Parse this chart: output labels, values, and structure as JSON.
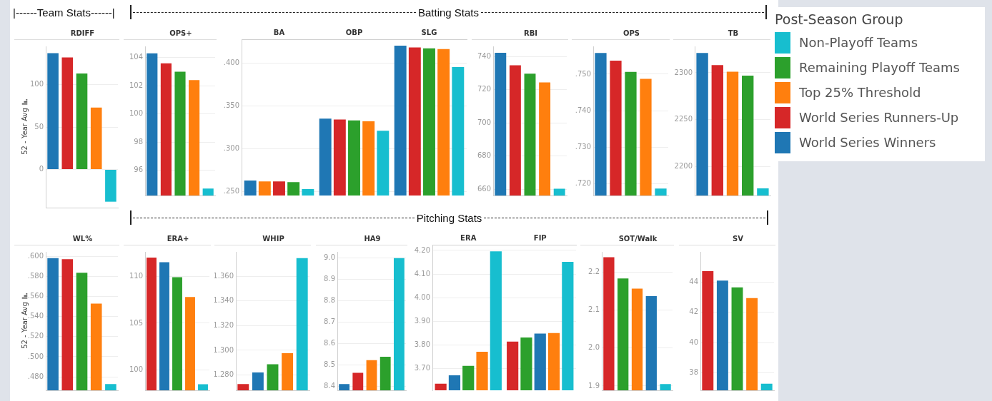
{
  "chart_data": [
    {
      "type": "bar",
      "title": "RDIFF",
      "ylabel": "52 - Year Avg",
      "annotations": [
        "|------Team Stats------|"
      ],
      "categories": [
        null,
        null,
        null,
        null,
        null
      ],
      "values": [
        137,
        132,
        113,
        73,
        -38
      ],
      "colors": [
        "#1f77b4",
        "#d62728",
        "#2ca02c",
        "#ff7f0e",
        "#17becf"
      ],
      "ylim": [
        -45,
        145
      ],
      "yticks": [
        0,
        50,
        100
      ],
      "grid": "y"
    },
    {
      "type": "bar",
      "title": "OPS+",
      "annotations": [
        "Batting Stats"
      ],
      "categories": [
        null,
        null,
        null,
        null,
        null
      ],
      "values": [
        104.3,
        103.6,
        103.0,
        102.4,
        94.7
      ],
      "colors": [
        "#1f77b4",
        "#d62728",
        "#2ca02c",
        "#ff7f0e",
        "#17becf"
      ],
      "ylim": [
        94.2,
        104.8
      ],
      "yticks": [
        96,
        98,
        100,
        102,
        104
      ],
      "grid": "y"
    },
    {
      "type": "bar",
      "categories": [
        "BA",
        "OBP",
        "SLG"
      ],
      "series": [
        {
          "values": [
            0.263,
            0.335,
            0.42
          ],
          "colors": [
            "#1f77b4",
            "#1f77b4",
            "#1f77b4"
          ]
        },
        {
          "values": [
            0.262,
            0.334,
            0.418
          ],
          "colors": [
            "#ff7f0e",
            "#d62728",
            "#d62728"
          ]
        },
        {
          "values": [
            0.262,
            0.333,
            0.417
          ],
          "colors": [
            "#d62728",
            "#2ca02c",
            "#2ca02c"
          ]
        },
        {
          "values": [
            0.261,
            0.332,
            0.416
          ],
          "colors": [
            "#2ca02c",
            "#ff7f0e",
            "#ff7f0e"
          ]
        },
        {
          "values": [
            0.253,
            0.321,
            0.395
          ],
          "colors": [
            "#17becf",
            "#17becf",
            "#17becf"
          ]
        }
      ],
      "ylim": [
        0.2455,
        0.4275
      ],
      "yticks": [
        {
          "value": 0.25,
          "label": ".250"
        },
        {
          "value": 0.3,
          "label": ".300"
        },
        {
          "value": 0.35,
          "label": ".350"
        },
        {
          "value": 0.4,
          "label": ".400"
        }
      ],
      "grid": "y"
    },
    {
      "type": "bar",
      "title": "RBI",
      "categories": [
        null,
        null,
        null,
        null,
        null
      ],
      "values": [
        742.3,
        734.8,
        729.7,
        724.4,
        660.3
      ],
      "colors": [
        "#1f77b4",
        "#d62728",
        "#2ca02c",
        "#ff7f0e",
        "#17becf"
      ],
      "ylim": [
        656.2,
        746.2
      ],
      "yticks": [
        660,
        680,
        700,
        720,
        740
      ],
      "grid": "y"
    },
    {
      "type": "bar",
      "title": "OPS",
      "categories": [
        null,
        null,
        null,
        null,
        null
      ],
      "values": [
        0.7558,
        0.7537,
        0.7506,
        0.7487,
        0.7187
      ],
      "colors": [
        "#1f77b4",
        "#d62728",
        "#2ca02c",
        "#ff7f0e",
        "#17becf"
      ],
      "ylim": [
        0.7168,
        0.7576
      ],
      "yticks": [
        {
          "value": 0.72,
          "label": ".720"
        },
        {
          "value": 0.73,
          "label": ".730"
        },
        {
          "value": 0.74,
          "label": ".740"
        },
        {
          "value": 0.75,
          "label": ".750"
        }
      ],
      "grid": "y"
    },
    {
      "type": "bar",
      "title": "TB",
      "categories": [
        null,
        null,
        null,
        null,
        null
      ],
      "values": [
        2321,
        2308,
        2301,
        2297,
        2177
      ],
      "colors": [
        "#1f77b4",
        "#d62728",
        "#ff7f0e",
        "#2ca02c",
        "#17becf"
      ],
      "ylim": [
        2169.5,
        2328
      ],
      "yticks": [
        2200,
        2250,
        2300
      ],
      "grid": "y"
    },
    {
      "type": "bar",
      "title": "WL%",
      "ylabel": "52 - Year Avg",
      "annotations": [
        "Pitching Stats"
      ],
      "categories": [
        null,
        null,
        null,
        null,
        null
      ],
      "values": [
        0.5985,
        0.5974,
        0.5839,
        0.5531,
        0.4727
      ],
      "colors": [
        "#1f77b4",
        "#d62728",
        "#2ca02c",
        "#ff7f0e",
        "#17becf"
      ],
      "ylim": [
        0.4665,
        0.6047
      ],
      "yticks": [
        {
          "value": 0.48,
          "label": ".480"
        },
        {
          "value": 0.5,
          "label": ".500"
        },
        {
          "value": 0.52,
          "label": ".520"
        },
        {
          "value": 0.54,
          "label": ".540"
        },
        {
          "value": 0.56,
          "label": ".560"
        },
        {
          "value": 0.58,
          "label": ".580"
        },
        {
          "value": 0.6,
          "label": ".600"
        }
      ],
      "grid": "y"
    },
    {
      "type": "bar",
      "title": "ERA+",
      "categories": [
        null,
        null,
        null,
        null,
        null
      ],
      "values": [
        112.0,
        111.5,
        109.9,
        107.8,
        98.5
      ],
      "colors": [
        "#d62728",
        "#1f77b4",
        "#2ca02c",
        "#ff7f0e",
        "#17becf"
      ],
      "ylim": [
        97.85,
        112.6
      ],
      "yticks": [
        100,
        105,
        110
      ],
      "grid": "y"
    },
    {
      "type": "bar",
      "title": "WHIP",
      "categories": [
        null,
        null,
        null,
        null,
        null
      ],
      "values": [
        1.2727,
        1.2821,
        1.2887,
        1.2976,
        1.3747
      ],
      "colors": [
        "#d62728",
        "#1f77b4",
        "#2ca02c",
        "#ff7f0e",
        "#17becf"
      ],
      "ylim": [
        1.2676,
        1.3797
      ],
      "yticks": [
        {
          "value": 1.28,
          "label": "1.280"
        },
        {
          "value": 1.3,
          "label": "1.300"
        },
        {
          "value": 1.32,
          "label": "1.320"
        },
        {
          "value": 1.34,
          "label": "1.340"
        },
        {
          "value": 1.36,
          "label": "1.360"
        }
      ],
      "grid": "y"
    },
    {
      "type": "bar",
      "title": "HA9",
      "categories": [
        null,
        null,
        null,
        null,
        null
      ],
      "values": [
        8.411,
        8.464,
        8.523,
        8.539,
        9.0
      ],
      "colors": [
        "#1f77b4",
        "#d62728",
        "#ff7f0e",
        "#2ca02c",
        "#17becf"
      ],
      "ylim": [
        8.382,
        9.029
      ],
      "yticks": [
        8.4,
        8.5,
        8.6,
        8.7,
        8.8,
        8.9,
        {
          "value": 9.0,
          "label": "9.0"
        }
      ],
      "grid": "y"
    },
    {
      "type": "bar",
      "categories": [
        "ERA",
        "FIP"
      ],
      "series": [
        {
          "values": [
            3.637,
            3.815
          ],
          "colors": [
            "#d62728",
            "#d62728"
          ]
        },
        {
          "values": [
            3.672,
            3.832
          ],
          "colors": [
            "#1f77b4",
            "#2ca02c"
          ]
        },
        {
          "values": [
            3.712,
            3.849
          ],
          "colors": [
            "#2ca02c",
            "#1f77b4"
          ]
        },
        {
          "values": [
            3.772,
            3.851
          ],
          "colors": [
            "#ff7f0e",
            "#ff7f0e"
          ]
        },
        {
          "values": [
            4.196,
            4.152
          ],
          "colors": [
            "#17becf",
            "#17becf"
          ]
        }
      ],
      "ylim": [
        3.609,
        4.224
      ],
      "yticks": [
        {
          "value": 3.7,
          "label": "3.70"
        },
        {
          "value": 3.8,
          "label": "3.80"
        },
        {
          "value": 3.9,
          "label": "3.90"
        },
        {
          "value": 4.0,
          "label": "4.00"
        },
        {
          "value": 4.1,
          "label": "4.10"
        },
        {
          "value": 4.2,
          "label": "4.20"
        }
      ],
      "grid": "y"
    },
    {
      "type": "bar",
      "title": "SOT/Walk",
      "categories": [
        null,
        null,
        null,
        null,
        null
      ],
      "values": [
        2.24,
        2.184,
        2.157,
        2.137,
        1.905
      ],
      "colors": [
        "#d62728",
        "#2ca02c",
        "#ff7f0e",
        "#1f77b4",
        "#17becf"
      ],
      "ylim": [
        1.8886,
        2.254
      ],
      "yticks": [
        1.9,
        {
          "value": 2.0,
          "label": "2.0"
        },
        2.1,
        2.2
      ],
      "grid": "y"
    },
    {
      "type": "bar",
      "title": "SV",
      "categories": [
        null,
        null,
        null,
        null,
        null
      ],
      "values": [
        44.73,
        44.1,
        43.66,
        42.95,
        37.3
      ],
      "colors": [
        "#d62728",
        "#1f77b4",
        "#2ca02c",
        "#ff7f0e",
        "#17becf"
      ],
      "ylim": [
        36.86,
        46.0
      ],
      "yticks": [
        38,
        40,
        42,
        44
      ],
      "grid": "y"
    },
    {
      "type": "other",
      "legend_title": "Post-Season Group",
      "series": [
        {
          "name": "Non-Playoff Teams",
          "color": "#17becf"
        },
        {
          "name": "Remaining Playoff Teams",
          "color": "#2ca02c"
        },
        {
          "name": "Top 25% Threshold",
          "color": "#ff7f0e"
        },
        {
          "name": "World Series Runners-Up",
          "color": "#d62728"
        },
        {
          "name": "World Series Winners",
          "color": "#1f77b4"
        }
      ]
    }
  ]
}
